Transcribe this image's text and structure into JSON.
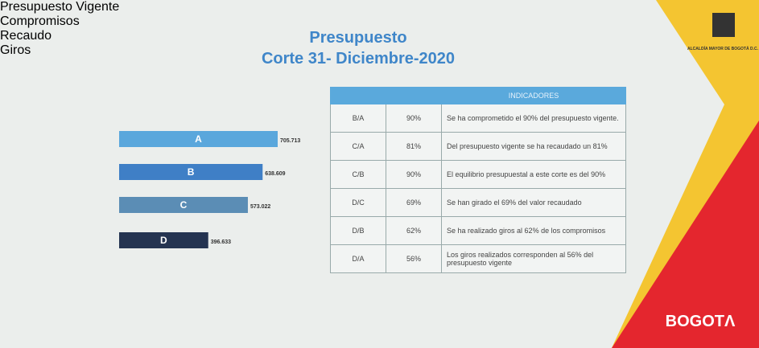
{
  "title": "Presupuesto",
  "subtitle": "Corte 31- Diciembre-2020",
  "chart_data": {
    "type": "bar",
    "orientation": "horizontal",
    "categories": [
      "Presupuesto Vigente",
      "Compromisos",
      "Recaudo",
      "Giros"
    ],
    "bar_labels": [
      "A",
      "B",
      "C",
      "D"
    ],
    "values": [
      705713,
      638609,
      573022,
      396633
    ],
    "value_labels": [
      "705.713",
      "638.609",
      "573.022",
      "396.633"
    ],
    "colors": [
      "#5aa7dc",
      "#3f7fc6",
      "#5b8db5",
      "#253451"
    ]
  },
  "table": {
    "title": "INDICADORES",
    "rows": [
      [
        "B/A",
        "90%",
        "Se ha comprometido el 90% del presupuesto vigente."
      ],
      [
        "C/A",
        "81%",
        "Del presupuesto vigente se ha recaudado un 81%"
      ],
      [
        "C/B",
        "90%",
        "El equilibrio presupuestal a este corte es del 90%"
      ],
      [
        "D/C",
        "69%",
        "Se han girado el 69% del valor recaudado"
      ],
      [
        "D/B",
        "62%",
        "Se ha realizado giros al 62% de los compromisos"
      ],
      [
        "D/A",
        "56%",
        "Los giros realizados corresponden al 56% del presupuesto vigente"
      ]
    ]
  },
  "logo": {
    "text": "ALCALDÍA MAYOR DE BOGOTÁ D.C.",
    "brand": "BOGOTΛ"
  }
}
